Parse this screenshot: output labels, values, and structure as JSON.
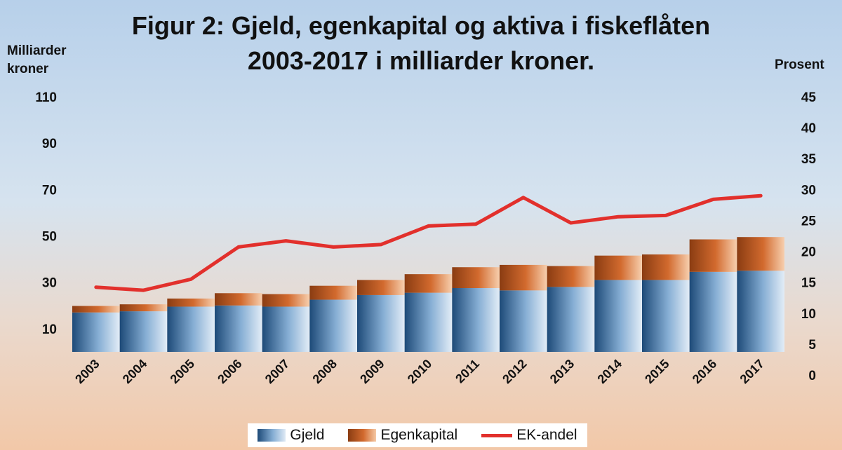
{
  "chart_data": {
    "type": "bar",
    "title_lines": [
      "Figur 2: Gjeld, egenkapital og aktiva i fiskeflåten",
      "2003-2017 i milliarder kroner."
    ],
    "ylabel_left_lines": [
      "Milliarder",
      "kroner"
    ],
    "ylabel_right": "Prosent",
    "categories": [
      "2003",
      "2004",
      "2005",
      "2006",
      "2007",
      "2008",
      "2009",
      "2010",
      "2011",
      "2012",
      "2013",
      "2014",
      "2015",
      "2016",
      "2017"
    ],
    "y_left_ticks": [
      "10",
      "30",
      "50",
      "70",
      "90",
      "110"
    ],
    "y_right_ticks": [
      "0",
      "5",
      "10",
      "15",
      "20",
      "25",
      "30",
      "35",
      "40",
      "45"
    ],
    "ylim_left": [
      0,
      120
    ],
    "ylim_right": [
      0,
      45
    ],
    "stacked": true,
    "grid": false,
    "legend_position": "bottom",
    "series": [
      {
        "name": "Gjeld",
        "kind": "bar",
        "axis": "left",
        "color": "#3a6d9e",
        "values": [
          17,
          17.5,
          19.5,
          20,
          19.5,
          22.5,
          24.5,
          25.5,
          27.5,
          26.5,
          28,
          31,
          31,
          34.5,
          35
        ]
      },
      {
        "name": "Egenkapital",
        "kind": "bar",
        "axis": "left",
        "color": "#d0682e",
        "values": [
          2.8,
          3,
          3.5,
          5.3,
          5.4,
          6,
          6.5,
          8,
          9,
          11,
          9,
          10.5,
          11,
          14,
          14.5
        ]
      },
      {
        "name": "EK-andel",
        "kind": "line",
        "axis": "right",
        "color": "#e2302c",
        "values": [
          14.2,
          13.7,
          15.5,
          20.7,
          21.7,
          20.7,
          21.1,
          24.1,
          24.4,
          28.7,
          24.6,
          25.6,
          25.8,
          28.4,
          29.0
        ]
      }
    ]
  }
}
